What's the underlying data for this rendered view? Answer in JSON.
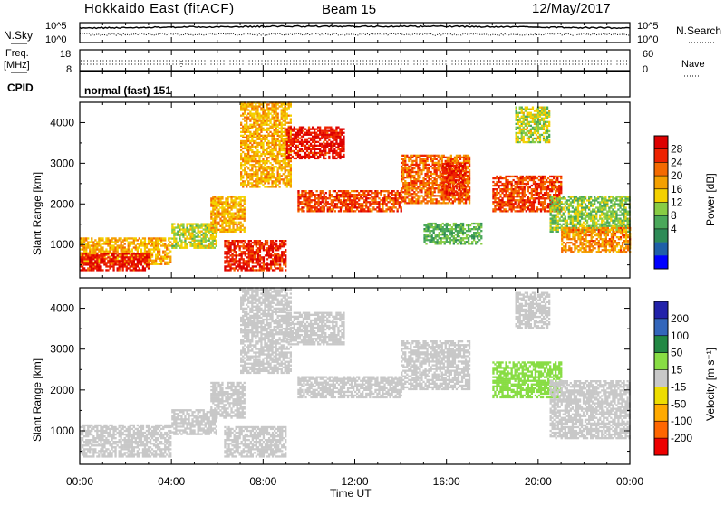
{
  "header": {
    "station": "Hokkaido East (fitACF)",
    "beam": "Beam 15",
    "date": "12/May/2017"
  },
  "noise_panel": {
    "left_label": "N.Sky",
    "right_label": "N.Search",
    "top_tick": "10^5",
    "bottom_tick": "10^0"
  },
  "freq_panel": {
    "left_label_1": "Freq.",
    "left_label_2": "[MHz]",
    "left_ticks": [
      "18",
      "8"
    ],
    "right_label": "Nave",
    "right_ticks": [
      "60",
      "0"
    ]
  },
  "cpid_panel": {
    "label": "CPID",
    "mode_text": "normal (fast) 151"
  },
  "power_panel": {
    "ylabel": "Slant Range [km]",
    "colorbar_label": "Power [dB]"
  },
  "velocity_panel": {
    "ylabel": "Slant Range [km]",
    "colorbar_label": "Velocity [m s⁻¹]"
  },
  "xaxis": {
    "xlabel": "Time UT",
    "tick_labels": [
      "00:00",
      "04:00",
      "08:00",
      "12:00",
      "16:00",
      "20:00",
      "00:00"
    ]
  },
  "colors": {
    "power": [
      "#0000ff",
      "#1f5fa8",
      "#2e8b57",
      "#4aa85a",
      "#88cc44",
      "#f4d100",
      "#f4a000",
      "#f46a00",
      "#ee2200",
      "#dd0000"
    ],
    "velocity": [
      "#2222aa",
      "#3366bb",
      "#228844",
      "#88dd44",
      "#c8c8c8",
      "#eedd00",
      "#ffaa00",
      "#ff6600",
      "#ee0000"
    ]
  },
  "chart_data": [
    {
      "type": "heatmap",
      "name": "Power",
      "xlabel": "Time UT",
      "ylabel": "Slant Range [km]",
      "xlim": [
        0,
        24
      ],
      "ylim": [
        180,
        4500
      ],
      "yticks": [
        1000,
        2000,
        3000,
        4000
      ],
      "colorbar_label": "Power [dB]",
      "colorbar_ticks": [
        4,
        8,
        12,
        16,
        20,
        24,
        28
      ],
      "colorbar_range": [
        0,
        32
      ],
      "regions": [
        {
          "t0": 0.0,
          "t1": 4.0,
          "r0": 500,
          "r1": 1150,
          "value": 20
        },
        {
          "t0": 0.0,
          "t1": 3.0,
          "r0": 350,
          "r1": 800,
          "value": 29
        },
        {
          "t0": 4.0,
          "t1": 6.0,
          "r0": 900,
          "r1": 1500,
          "value": 16
        },
        {
          "t0": 5.7,
          "t1": 7.2,
          "r0": 1300,
          "r1": 2200,
          "value": 20
        },
        {
          "t0": 6.3,
          "t1": 9.0,
          "r0": 350,
          "r1": 1100,
          "value": 28
        },
        {
          "t0": 7.0,
          "t1": 9.2,
          "r0": 2400,
          "r1": 4500,
          "value": 20
        },
        {
          "t0": 9.0,
          "t1": 11.5,
          "r0": 3100,
          "r1": 3900,
          "value": 29
        },
        {
          "t0": 9.5,
          "t1": 14.0,
          "r0": 1800,
          "r1": 2300,
          "value": 26
        },
        {
          "t0": 14.0,
          "t1": 17.0,
          "r0": 2000,
          "r1": 3200,
          "value": 24
        },
        {
          "t0": 15.8,
          "t1": 16.8,
          "r0": 2200,
          "r1": 3000,
          "value": 28
        },
        {
          "t0": 15.0,
          "t1": 17.5,
          "r0": 1000,
          "r1": 1500,
          "value": 12
        },
        {
          "t0": 18.0,
          "t1": 21.0,
          "r0": 1800,
          "r1": 2700,
          "value": 26
        },
        {
          "t0": 19.0,
          "t1": 20.5,
          "r0": 3500,
          "r1": 4400,
          "value": 16
        },
        {
          "t0": 20.5,
          "t1": 24.0,
          "r0": 1300,
          "r1": 2200,
          "value": 14
        },
        {
          "t0": 21.0,
          "t1": 24.0,
          "r0": 800,
          "r1": 1400,
          "value": 22
        }
      ]
    },
    {
      "type": "heatmap",
      "name": "Velocity",
      "xlabel": "Time UT",
      "ylabel": "Slant Range [km]",
      "xlim": [
        0,
        24
      ],
      "ylim": [
        180,
        4500
      ],
      "yticks": [
        1000,
        2000,
        3000,
        4000
      ],
      "colorbar_label": "Velocity [m s⁻¹]",
      "colorbar_ticks": [
        200,
        100,
        50,
        15,
        -15,
        -50,
        -100,
        -200
      ],
      "regions": [
        {
          "t0": 0.0,
          "t1": 4.0,
          "r0": 350,
          "r1": 1150,
          "value": 0
        },
        {
          "t0": 4.0,
          "t1": 6.0,
          "r0": 900,
          "r1": 1500,
          "value": 0
        },
        {
          "t0": 5.7,
          "t1": 7.2,
          "r0": 1300,
          "r1": 2200,
          "value": 0
        },
        {
          "t0": 6.3,
          "t1": 9.0,
          "r0": 350,
          "r1": 1100,
          "value": 0
        },
        {
          "t0": 7.0,
          "t1": 9.2,
          "r0": 2400,
          "r1": 4500,
          "value": 0
        },
        {
          "t0": 9.0,
          "t1": 11.5,
          "r0": 3100,
          "r1": 3900,
          "value": 0
        },
        {
          "t0": 9.5,
          "t1": 14.0,
          "r0": 1800,
          "r1": 2300,
          "value": 0
        },
        {
          "t0": 14.0,
          "t1": 17.0,
          "r0": 2000,
          "r1": 3200,
          "value": 0
        },
        {
          "t0": 18.0,
          "t1": 21.0,
          "r0": 1800,
          "r1": 2700,
          "value": 30
        },
        {
          "t0": 19.0,
          "t1": 20.5,
          "r0": 3500,
          "r1": 4400,
          "value": 0
        },
        {
          "t0": 20.5,
          "t1": 24.0,
          "r0": 800,
          "r1": 2200,
          "value": 0
        }
      ]
    }
  ]
}
